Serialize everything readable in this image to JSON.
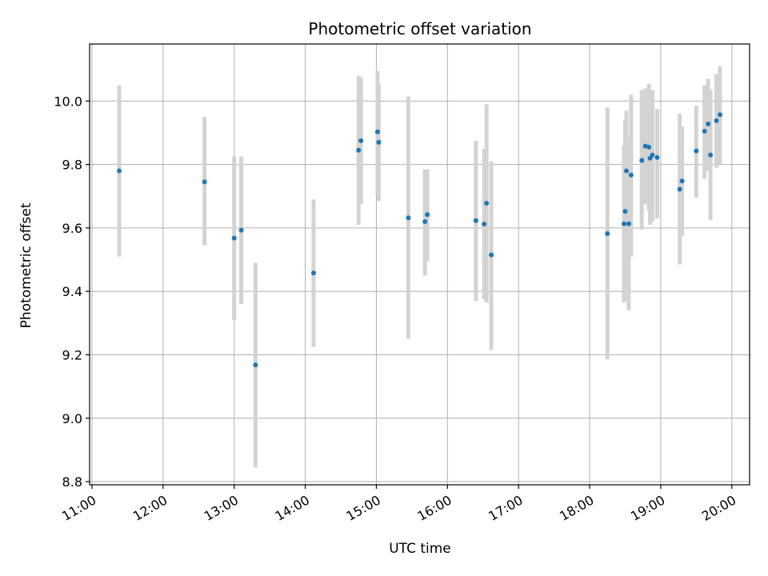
{
  "chart_data": {
    "type": "scatter",
    "title": "Photometric offset variation",
    "xlabel": "UTC time",
    "ylabel": "Photometric offset",
    "x_tick_labels": [
      "11:00",
      "12:00",
      "13:00",
      "14:00",
      "15:00",
      "16:00",
      "17:00",
      "18:00",
      "19:00",
      "20:00"
    ],
    "y_tick_labels": [
      "8.8",
      "9.0",
      "9.2",
      "9.4",
      "9.6",
      "9.8",
      "10.0"
    ],
    "xlim": [
      "10:58",
      "20:15"
    ],
    "ylim": [
      8.79,
      10.18
    ],
    "grid": true,
    "colors": {
      "marker": "#1f77b4",
      "errorbar": "#d3d3d3",
      "grid": "#b0b0b0"
    },
    "points": [
      {
        "x": "11:23",
        "y": 9.78,
        "yerr_low": 9.51,
        "yerr_high": 10.05
      },
      {
        "x": "12:35",
        "y": 9.745,
        "yerr_low": 9.545,
        "yerr_high": 9.95
      },
      {
        "x": "13:00",
        "y": 9.568,
        "yerr_low": 9.31,
        "yerr_high": 9.825
      },
      {
        "x": "13:06",
        "y": 9.593,
        "yerr_low": 9.36,
        "yerr_high": 9.825
      },
      {
        "x": "13:18",
        "y": 9.168,
        "yerr_low": 8.845,
        "yerr_high": 9.49
      },
      {
        "x": "14:07",
        "y": 9.458,
        "yerr_low": 9.225,
        "yerr_high": 9.69
      },
      {
        "x": "14:45",
        "y": 9.845,
        "yerr_low": 9.61,
        "yerr_high": 10.08
      },
      {
        "x": "14:47",
        "y": 9.875,
        "yerr_low": 9.675,
        "yerr_high": 10.075
      },
      {
        "x": "15:01",
        "y": 9.903,
        "yerr_low": 9.705,
        "yerr_high": 10.095
      },
      {
        "x": "15:02",
        "y": 9.87,
        "yerr_low": 9.685,
        "yerr_high": 10.055
      },
      {
        "x": "15:27",
        "y": 9.632,
        "yerr_low": 9.25,
        "yerr_high": 10.015
      },
      {
        "x": "15:41",
        "y": 9.62,
        "yerr_low": 9.45,
        "yerr_high": 9.785
      },
      {
        "x": "15:43",
        "y": 9.642,
        "yerr_low": 9.495,
        "yerr_high": 9.785
      },
      {
        "x": "16:24",
        "y": 9.623,
        "yerr_low": 9.37,
        "yerr_high": 9.875
      },
      {
        "x": "16:31",
        "y": 9.612,
        "yerr_low": 9.375,
        "yerr_high": 9.85
      },
      {
        "x": "16:33",
        "y": 9.678,
        "yerr_low": 9.365,
        "yerr_high": 9.99
      },
      {
        "x": "16:37",
        "y": 9.515,
        "yerr_low": 9.215,
        "yerr_high": 9.81
      },
      {
        "x": "18:15",
        "y": 9.582,
        "yerr_low": 9.185,
        "yerr_high": 9.98
      },
      {
        "x": "18:29",
        "y": 9.613,
        "yerr_low": 9.365,
        "yerr_high": 9.86
      },
      {
        "x": "18:30",
        "y": 9.652,
        "yerr_low": 9.37,
        "yerr_high": 9.94
      },
      {
        "x": "18:31",
        "y": 9.78,
        "yerr_low": 9.59,
        "yerr_high": 9.97
      },
      {
        "x": "18:33",
        "y": 9.613,
        "yerr_low": 9.34,
        "yerr_high": 9.89
      },
      {
        "x": "18:35",
        "y": 9.767,
        "yerr_low": 9.51,
        "yerr_high": 10.02
      },
      {
        "x": "18:44",
        "y": 9.813,
        "yerr_low": 9.595,
        "yerr_high": 10.035
      },
      {
        "x": "18:47",
        "y": 9.858,
        "yerr_low": 9.675,
        "yerr_high": 10.04
      },
      {
        "x": "18:50",
        "y": 9.855,
        "yerr_low": 9.655,
        "yerr_high": 10.055
      },
      {
        "x": "18:51",
        "y": 9.82,
        "yerr_low": 9.61,
        "yerr_high": 10.03
      },
      {
        "x": "18:53",
        "y": 9.83,
        "yerr_low": 9.62,
        "yerr_high": 10.035
      },
      {
        "x": "18:57",
        "y": 9.822,
        "yerr_low": 9.63,
        "yerr_high": 9.975
      },
      {
        "x": "19:16",
        "y": 9.722,
        "yerr_low": 9.485,
        "yerr_high": 9.96
      },
      {
        "x": "19:18",
        "y": 9.748,
        "yerr_low": 9.575,
        "yerr_high": 9.92
      },
      {
        "x": "19:30",
        "y": 9.843,
        "yerr_low": 9.695,
        "yerr_high": 9.985
      },
      {
        "x": "19:37",
        "y": 9.905,
        "yerr_low": 9.755,
        "yerr_high": 10.05
      },
      {
        "x": "19:40",
        "y": 9.928,
        "yerr_low": 9.78,
        "yerr_high": 10.07
      },
      {
        "x": "19:42",
        "y": 9.83,
        "yerr_low": 9.625,
        "yerr_high": 10.035
      },
      {
        "x": "19:47",
        "y": 9.938,
        "yerr_low": 9.79,
        "yerr_high": 10.085
      },
      {
        "x": "19:50",
        "y": 9.957,
        "yerr_low": 9.8,
        "yerr_high": 10.11
      }
    ]
  }
}
